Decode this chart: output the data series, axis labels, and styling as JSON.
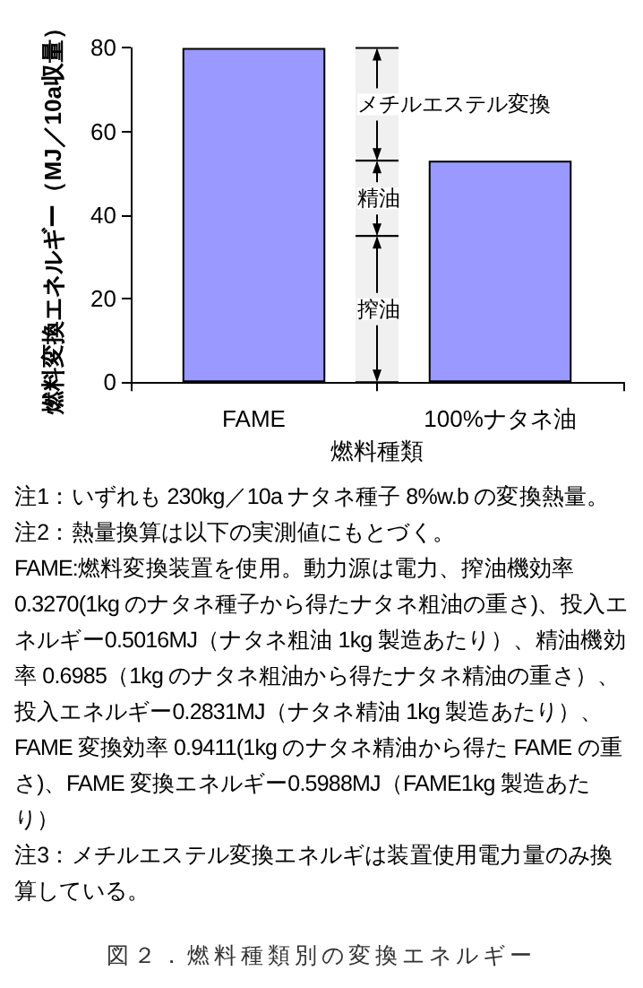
{
  "chart_data": {
    "type": "bar",
    "xlabel": "燃料種類",
    "ylabel": "燃料変換エネルギー（MJ／10a収量）",
    "categories": [
      "FAME",
      "100%ナタネ油"
    ],
    "values": [
      80,
      53
    ],
    "color": "#9999ff",
    "ylim": [
      0,
      80
    ],
    "yticks": [
      0,
      20,
      40,
      60,
      80
    ],
    "bands": [
      {
        "axis": "y",
        "from": 53,
        "to": 80,
        "label": "メチルエステル変換",
        "color": "#f0f0f0"
      },
      {
        "axis": "y",
        "from": 35,
        "to": 53,
        "label": "精油",
        "color": "#f0f0f0"
      },
      {
        "axis": "y",
        "from": 0,
        "to": 35,
        "label": "搾油",
        "color": "#f0f0f0"
      }
    ],
    "annotations": [
      "注1：いずれも 230kg／10a ナタネ種子 8%w.b の変換熱量。",
      "注2：熱量換算は以下の実測値にもとづく。",
      "FAME:燃料変換装置を使用。動力源は電力、搾油機効率 0.3270(1kg のナタネ種子から得たナタネ粗油の重さ)、投入エネルギー0.5016MJ（ナタネ粗油 1kg 製造あたり）、精油機効率 0.6985（1kg のナタネ粗油から得たナタネ精油の重さ）、投入エネルギー0.2831MJ（ナタネ精油 1kg 製造あたり）、FAME 変換効率 0.9411(1kg のナタネ精油から得た FAME の重さ)、FAME 変換エネルギー0.5988MJ（FAME1kg 製造あたり）",
      "注3：メチルエステル変換エネルギは装置使用電力量のみ換算している。",
      "図２．燃料種類別の変換エネルギー"
    ]
  }
}
